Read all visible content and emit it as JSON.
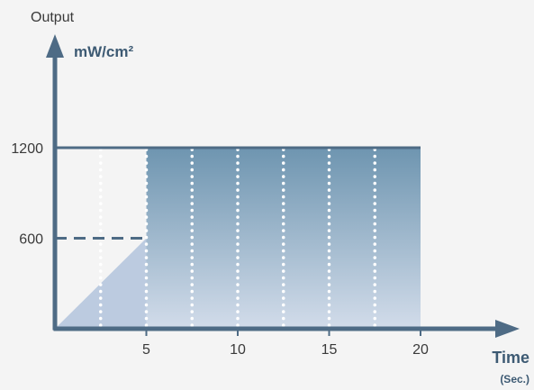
{
  "chart_data": {
    "type": "area",
    "y_title": "Output",
    "y_unit": "mW/cm²",
    "x_title": "Time",
    "x_unit": "(Sec.)",
    "x_ticks": [
      5,
      10,
      15,
      20
    ],
    "y_ticks": [
      600,
      1200
    ],
    "xlim": [
      0,
      20
    ],
    "ylim": [
      0,
      1200
    ],
    "series": [
      {
        "x": [
          0,
          5,
          5,
          20
        ],
        "y": [
          0,
          600,
          1200,
          1200
        ]
      }
    ],
    "dotted_gridlines_x": [
      2.5,
      5,
      7.5,
      10,
      12.5,
      15,
      17.5
    ],
    "reference_lines": [
      {
        "y": 600,
        "x_end": 5,
        "style": "dashed"
      },
      {
        "y": 1200,
        "x_end": 20,
        "style": "solid"
      }
    ],
    "colors": {
      "axis": "#4e6b85",
      "fill_top": "#6e95b0",
      "fill_bottom": "#d2dcea",
      "ramp": "#bccbe0",
      "dots": "#ffffff",
      "background": "#f4f4f4"
    },
    "grid": false,
    "legend": "none"
  }
}
